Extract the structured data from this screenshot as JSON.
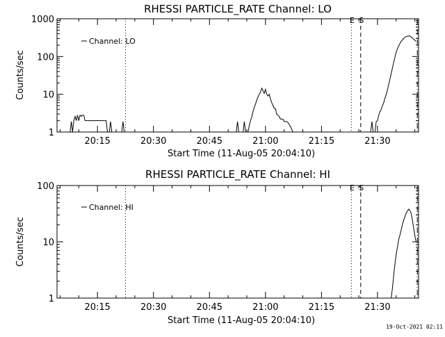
{
  "chart_data": [
    {
      "type": "line",
      "title": "RHESSI PARTICLE_RATE Channel: LO",
      "xlabel": "Start Time (11-Aug-05 20:04:10)",
      "ylabel": "Counts/sec",
      "yscale": "log",
      "ylim": [
        1,
        1000
      ],
      "xlim": [
        "20:04:10",
        "21:41:00"
      ],
      "x_ticks": [
        "20:15",
        "20:30",
        "20:45",
        "21:00",
        "21:15",
        "21:30"
      ],
      "y_ticks": [
        "1",
        "10",
        "100",
        "1000"
      ],
      "legend_position": "top-left",
      "grid": false,
      "markers": [
        {
          "label": "E",
          "time": "21:23:00",
          "style": "dotted"
        },
        {
          "label": "S",
          "time": "21:25:30",
          "style": "dashed"
        },
        {
          "label": "",
          "time": "20:22:30",
          "style": "dotted"
        },
        {
          "label": "",
          "time": "21:40:40",
          "style": "dashdot"
        }
      ],
      "series": [
        {
          "name": "Channel: LO",
          "color": "#000000",
          "segments": [
            {
              "x": [
                "20:07:40",
                "20:08:00",
                "20:08:20",
                "20:08:40",
                "20:09:00",
                "20:09:20",
                "20:09:40",
                "20:10:00",
                "20:10:20",
                "20:10:40",
                "20:11:00",
                "20:11:20",
                "20:11:40",
                "20:12:00",
                "20:12:40",
                "20:13:20",
                "20:14:00",
                "20:14:40",
                "20:15:20",
                "20:16:00",
                "20:16:40",
                "20:17:20",
                "20:17:40"
              ],
              "y": [
                1,
                1.9,
                1,
                2,
                2.6,
                2,
                2.8,
                2,
                2.8,
                2.6,
                2.8,
                2.8,
                2,
                2,
                2,
                2,
                2,
                2,
                2,
                2,
                2,
                2,
                1
              ]
            },
            {
              "x": [
                "20:18:10",
                "20:18:30",
                "20:18:50"
              ],
              "y": [
                1,
                1.9,
                1
              ]
            },
            {
              "x": [
                "20:21:30",
                "20:21:50",
                "20:22:10"
              ],
              "y": [
                1,
                1.9,
                1
              ]
            },
            {
              "x": [
                "20:52:10",
                "20:52:30",
                "20:52:50"
              ],
              "y": [
                1,
                1.9,
                1
              ]
            },
            {
              "x": [
                "20:54:00",
                "20:54:20",
                "20:54:40"
              ],
              "y": [
                1,
                1.9,
                1
              ]
            },
            {
              "x": [
                "20:55:20",
                "20:55:40",
                "20:56:00",
                "20:56:20",
                "20:56:40",
                "20:57:00",
                "20:57:20",
                "20:57:40",
                "20:58:00",
                "20:58:20",
                "20:58:40",
                "20:59:00",
                "20:59:20",
                "20:59:40",
                "21:00:00",
                "21:00:20",
                "21:00:40",
                "21:01:00",
                "21:01:20",
                "21:01:40",
                "21:02:00",
                "21:02:20",
                "21:02:40",
                "21:03:00",
                "21:03:20",
                "21:03:40",
                "21:04:00",
                "21:04:20",
                "21:04:40",
                "21:05:00",
                "21:05:20",
                "21:05:40",
                "21:06:00",
                "21:06:20",
                "21:06:40",
                "21:07:00",
                "21:07:20"
              ],
              "y": [
                1,
                1.5,
                2,
                2.5,
                3.5,
                4.5,
                5.5,
                7,
                8.5,
                10,
                11.5,
                14.5,
                12.5,
                10.5,
                13.5,
                10,
                9,
                10,
                7.5,
                6,
                5,
                4.2,
                4.2,
                3,
                2.8,
                2.6,
                2.2,
                2.2,
                2.2,
                1.9,
                1.9,
                1.9,
                1.8,
                1.6,
                1.4,
                1.2,
                1
              ]
            },
            {
              "x": [
                "21:28:10",
                "21:28:30",
                "21:28:50"
              ],
              "y": [
                1,
                1.9,
                1
              ]
            },
            {
              "x": [
                "21:29:20",
                "21:29:40",
                "21:30:00",
                "21:30:20",
                "21:30:40",
                "21:31:00",
                "21:31:20",
                "21:31:40",
                "21:32:00",
                "21:32:20",
                "21:32:40",
                "21:33:00",
                "21:33:20",
                "21:33:40",
                "21:34:00",
                "21:34:20",
                "21:34:40",
                "21:35:00",
                "21:35:20",
                "21:35:40",
                "21:36:00",
                "21:36:20",
                "21:36:40",
                "21:37:00",
                "21:37:20",
                "21:37:40",
                "21:38:00",
                "21:38:20",
                "21:38:40",
                "21:39:00",
                "21:39:20",
                "21:39:40",
                "21:40:00",
                "21:40:20"
              ],
              "y": [
                1,
                1.9,
                2,
                2.8,
                3.5,
                4,
                5,
                6,
                8,
                10,
                13,
                18,
                25,
                35,
                50,
                70,
                95,
                130,
                160,
                190,
                220,
                250,
                275,
                300,
                320,
                340,
                345,
                350,
                345,
                330,
                310,
                290,
                270,
                250
              ]
            }
          ]
        }
      ]
    },
    {
      "type": "line",
      "title": "RHESSI PARTICLE_RATE Channel: HI",
      "xlabel": "Start Time (11-Aug-05 20:04:10)",
      "ylabel": "Counts/sec",
      "yscale": "log",
      "ylim": [
        1,
        100
      ],
      "xlim": [
        "20:04:10",
        "21:41:00"
      ],
      "x_ticks": [
        "20:15",
        "20:30",
        "20:45",
        "21:00",
        "21:15",
        "21:30"
      ],
      "y_ticks": [
        "1",
        "10",
        "100"
      ],
      "legend_position": "top-left",
      "grid": false,
      "markers": [
        {
          "label": "E",
          "time": "21:23:00",
          "style": "dotted"
        },
        {
          "label": "S",
          "time": "21:25:30",
          "style": "dashed"
        },
        {
          "label": "",
          "time": "20:22:30",
          "style": "dotted"
        },
        {
          "label": "",
          "time": "21:40:40",
          "style": "dashdot"
        }
      ],
      "series": [
        {
          "name": "Channel: HI",
          "color": "#000000",
          "segments": [
            {
              "x": [
                "21:33:40",
                "21:34:00",
                "21:34:20",
                "21:34:40",
                "21:35:00",
                "21:35:20",
                "21:35:40",
                "21:36:00",
                "21:36:20",
                "21:36:40",
                "21:37:00",
                "21:37:20",
                "21:37:40",
                "21:38:00",
                "21:38:20",
                "21:38:40",
                "21:39:00",
                "21:39:20",
                "21:39:40",
                "21:40:00",
                "21:40:20"
              ],
              "y": [
                1,
                1.5,
                2.5,
                4,
                6,
                8,
                11,
                13,
                16,
                20,
                24,
                28,
                32,
                35,
                38,
                36,
                32,
                25,
                18,
                13,
                10
              ]
            }
          ]
        }
      ]
    }
  ],
  "footer": {
    "timestamp": "19-Oct-2021 02:11"
  }
}
